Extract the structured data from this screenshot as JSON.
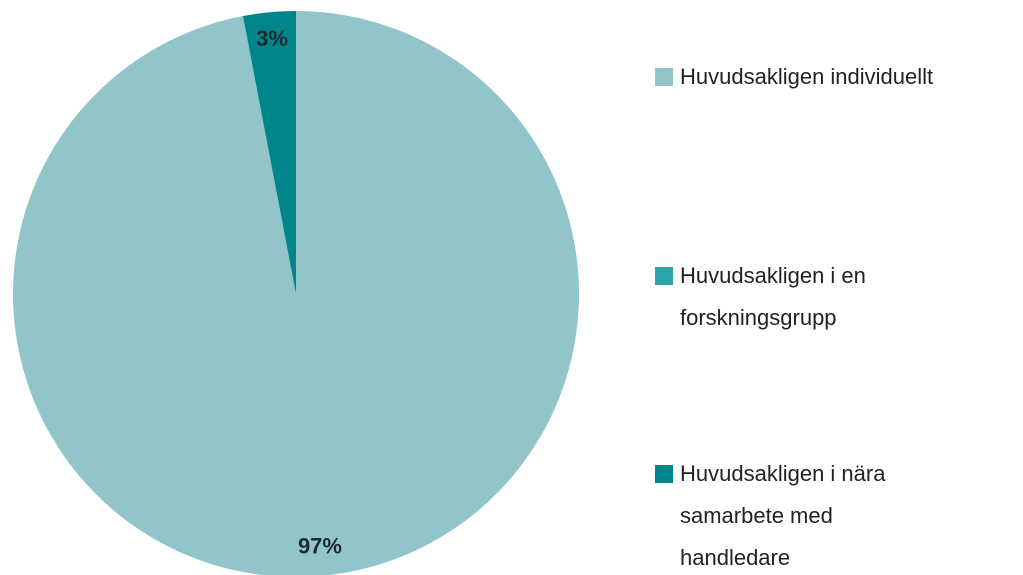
{
  "chart_data": {
    "type": "pie",
    "categories": [
      "Huvudsakligen individuellt",
      "Huvudsakligen i en forskningsgrupp",
      "Huvudsakligen i nära samarbete med handledare"
    ],
    "values": [
      97,
      0,
      3
    ],
    "value_labels": [
      "97%",
      null,
      "3%"
    ],
    "colors": [
      "#92c5ca",
      "#2aa6ab",
      "#00868a"
    ],
    "legend": "right"
  }
}
